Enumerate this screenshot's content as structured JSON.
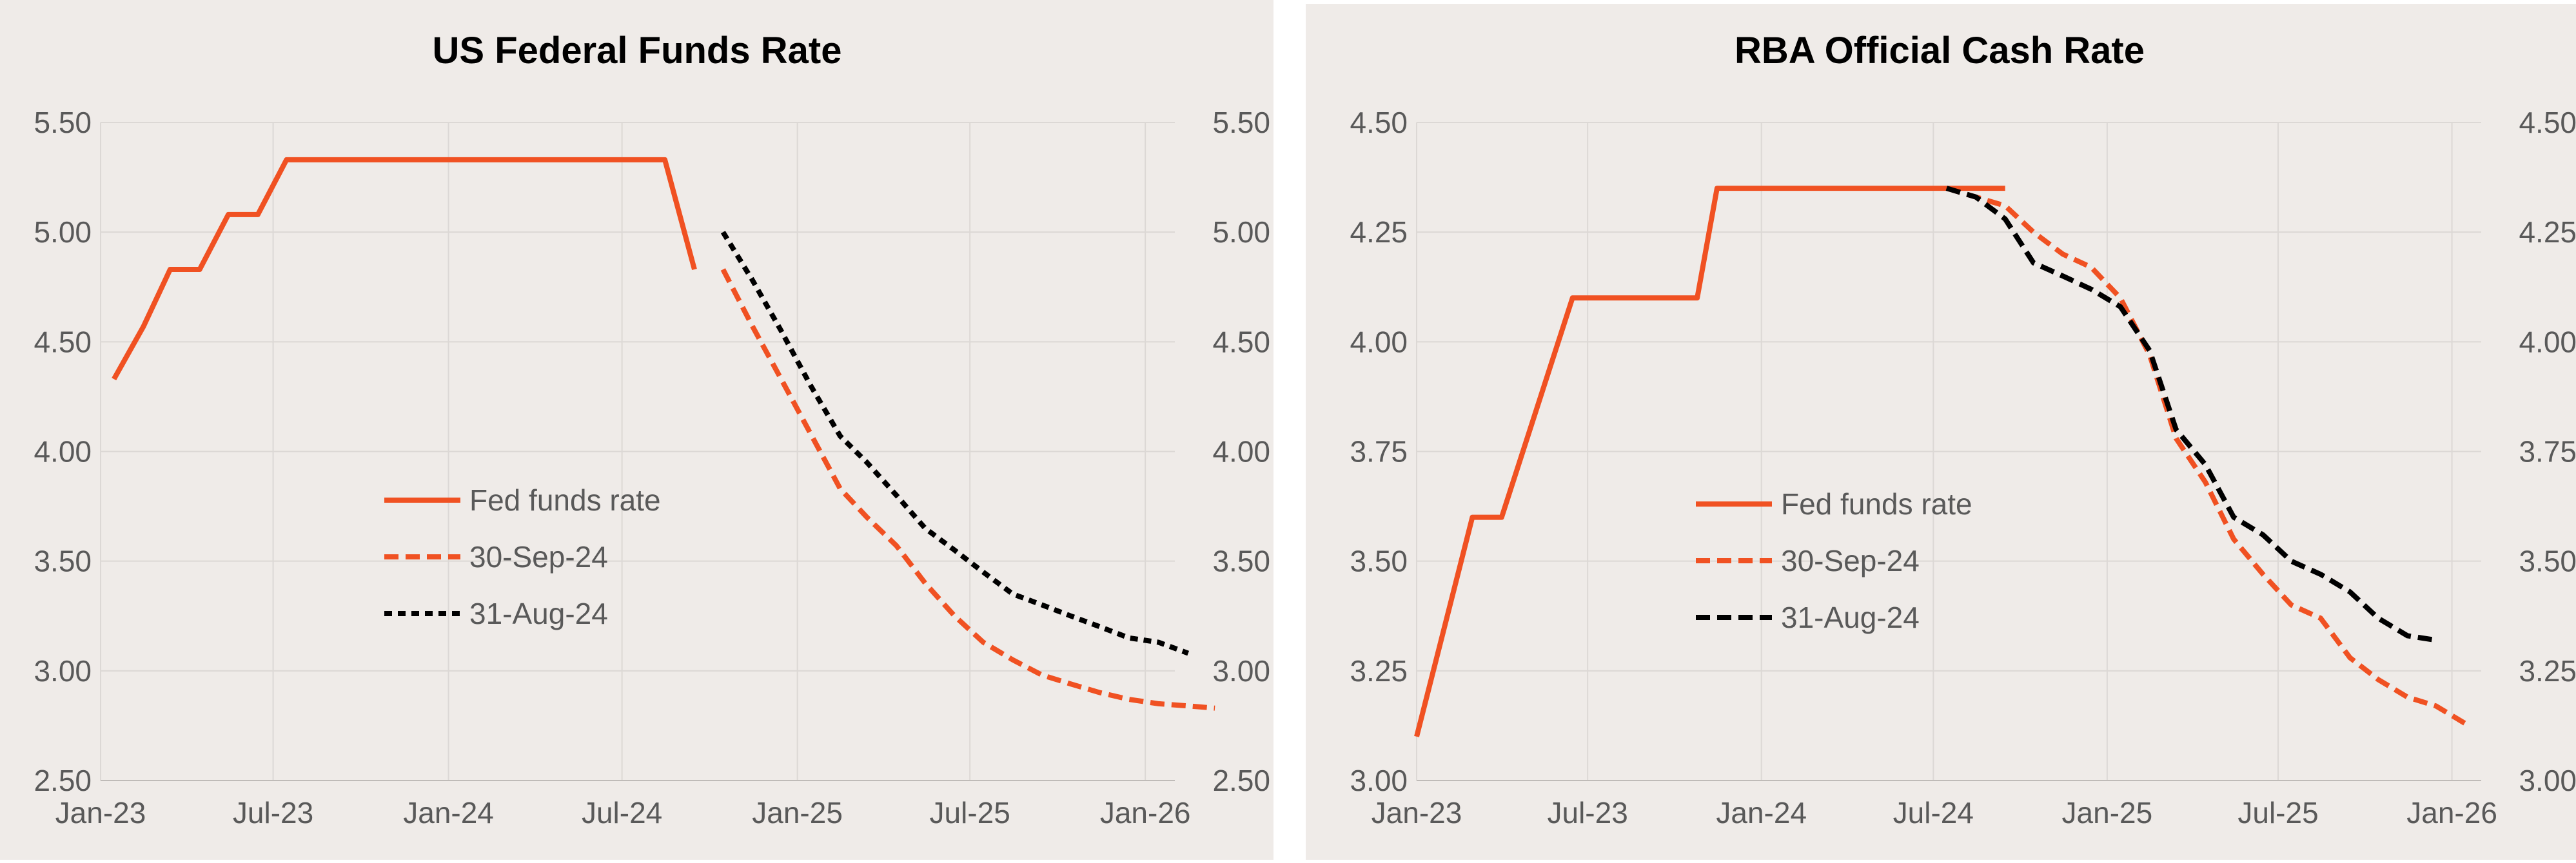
{
  "colors": {
    "background": "#efebe8",
    "gridline": "#dcd8d5",
    "axis_text": "#595959",
    "title_text": "#000000",
    "actual_series": "#f05122",
    "sep_series": "#f05122",
    "aug_series": "#000000"
  },
  "chart_data": [
    {
      "type": "line",
      "title": "US Federal Funds Rate",
      "xlabel": "",
      "ylabel": "",
      "x_ticks": [
        "Jan-23",
        "Jul-23",
        "Jan-24",
        "Jul-24",
        "Jan-25",
        "Jul-25",
        "Jan-26"
      ],
      "y_ticks": [
        "2.50",
        "3.00",
        "3.50",
        "4.00",
        "4.50",
        "5.00",
        "5.50"
      ],
      "ylim": [
        2.5,
        5.5
      ],
      "xlim": [
        "2023-01-01",
        "2026-02-01"
      ],
      "grid": true,
      "legend_position": "center-left",
      "series": [
        {
          "name": "Fed funds rate",
          "style": "solid",
          "points": [
            [
              "2023-01-15",
              4.33
            ],
            [
              "2023-02-15",
              4.57
            ],
            [
              "2023-03-15",
              4.83
            ],
            [
              "2023-04-15",
              4.83
            ],
            [
              "2023-05-15",
              5.08
            ],
            [
              "2023-06-15",
              5.08
            ],
            [
              "2023-07-15",
              5.33
            ],
            [
              "2023-08-15",
              5.33
            ],
            [
              "2023-09-15",
              5.33
            ],
            [
              "2023-10-15",
              5.33
            ],
            [
              "2023-11-15",
              5.33
            ],
            [
              "2023-12-15",
              5.33
            ],
            [
              "2024-01-15",
              5.33
            ],
            [
              "2024-02-15",
              5.33
            ],
            [
              "2024-03-15",
              5.33
            ],
            [
              "2024-04-15",
              5.33
            ],
            [
              "2024-05-15",
              5.33
            ],
            [
              "2024-06-15",
              5.33
            ],
            [
              "2024-07-15",
              5.33
            ],
            [
              "2024-08-15",
              5.33
            ],
            [
              "2024-09-15",
              4.83
            ]
          ]
        },
        {
          "name": "30-Sep-24",
          "style": "dashed",
          "points": [
            [
              "2024-10-15",
              4.83
            ],
            [
              "2024-11-15",
              4.57
            ],
            [
              "2024-12-15",
              4.33
            ],
            [
              "2025-01-15",
              4.08
            ],
            [
              "2025-02-15",
              3.83
            ],
            [
              "2025-03-15",
              3.7
            ],
            [
              "2025-04-15",
              3.57
            ],
            [
              "2025-05-15",
              3.4
            ],
            [
              "2025-06-15",
              3.25
            ],
            [
              "2025-07-15",
              3.13
            ],
            [
              "2025-08-15",
              3.05
            ],
            [
              "2025-09-15",
              2.98
            ],
            [
              "2025-10-15",
              2.94
            ],
            [
              "2025-11-15",
              2.9
            ],
            [
              "2025-12-15",
              2.87
            ],
            [
              "2026-01-15",
              2.85
            ],
            [
              "2026-02-15",
              2.84
            ],
            [
              "2026-03-15",
              2.83
            ]
          ]
        },
        {
          "name": "31-Aug-24",
          "style": "dotted",
          "points": [
            [
              "2024-10-15",
              5.0
            ],
            [
              "2024-11-15",
              4.78
            ],
            [
              "2024-12-15",
              4.55
            ],
            [
              "2025-01-15",
              4.3
            ],
            [
              "2025-02-15",
              4.07
            ],
            [
              "2025-03-15",
              3.95
            ],
            [
              "2025-04-15",
              3.8
            ],
            [
              "2025-05-15",
              3.65
            ],
            [
              "2025-06-15",
              3.55
            ],
            [
              "2025-07-15",
              3.45
            ],
            [
              "2025-08-15",
              3.35
            ],
            [
              "2025-09-15",
              3.3
            ],
            [
              "2025-10-15",
              3.25
            ],
            [
              "2025-11-15",
              3.2
            ],
            [
              "2025-12-15",
              3.15
            ],
            [
              "2026-01-15",
              3.13
            ],
            [
              "2026-02-15",
              3.08
            ]
          ]
        }
      ]
    },
    {
      "type": "line",
      "title": "RBA Official Cash Rate",
      "xlabel": "",
      "ylabel": "",
      "x_ticks": [
        "Jan-23",
        "Jul-23",
        "Jan-24",
        "Jul-24",
        "Jan-25",
        "Jul-25",
        "Jan-26"
      ],
      "y_ticks": [
        "3.00",
        "3.25",
        "3.50",
        "3.75",
        "4.00",
        "4.25",
        "4.50"
      ],
      "ylim": [
        3.0,
        4.5
      ],
      "xlim": [
        "2023-01-01",
        "2026-02-01"
      ],
      "grid": true,
      "legend_position": "center-left",
      "series": [
        {
          "name": "Fed funds rate",
          "style": "solid",
          "points": [
            [
              "2023-01-01",
              3.1
            ],
            [
              "2023-03-01",
              3.6
            ],
            [
              "2023-04-01",
              3.6
            ],
            [
              "2023-06-15",
              4.1
            ],
            [
              "2023-10-25",
              4.1
            ],
            [
              "2023-11-15",
              4.35
            ],
            [
              "2024-09-15",
              4.35
            ]
          ]
        },
        {
          "name": "30-Sep-24",
          "style": "dashed",
          "points": [
            [
              "2024-07-15",
              4.35
            ],
            [
              "2024-09-15",
              4.31
            ],
            [
              "2024-10-15",
              4.25
            ],
            [
              "2024-11-15",
              4.2
            ],
            [
              "2024-12-15",
              4.17
            ],
            [
              "2025-01-15",
              4.1
            ],
            [
              "2025-02-15",
              3.97
            ],
            [
              "2025-03-15",
              3.78
            ],
            [
              "2025-04-15",
              3.68
            ],
            [
              "2025-05-15",
              3.55
            ],
            [
              "2025-06-15",
              3.47
            ],
            [
              "2025-07-15",
              3.4
            ],
            [
              "2025-08-15",
              3.37
            ],
            [
              "2025-09-15",
              3.28
            ],
            [
              "2025-10-15",
              3.23
            ],
            [
              "2025-11-15",
              3.19
            ],
            [
              "2025-12-15",
              3.17
            ],
            [
              "2026-01-15",
              3.13
            ]
          ]
        },
        {
          "name": "31-Aug-24",
          "style": "dashed",
          "points": [
            [
              "2024-07-15",
              4.35
            ],
            [
              "2024-08-15",
              4.33
            ],
            [
              "2024-09-15",
              4.28
            ],
            [
              "2024-10-15",
              4.18
            ],
            [
              "2024-11-15",
              4.15
            ],
            [
              "2024-12-15",
              4.12
            ],
            [
              "2025-01-15",
              4.08
            ],
            [
              "2025-02-15",
              3.98
            ],
            [
              "2025-03-15",
              3.8
            ],
            [
              "2025-04-15",
              3.72
            ],
            [
              "2025-05-15",
              3.6
            ],
            [
              "2025-06-15",
              3.56
            ],
            [
              "2025-07-15",
              3.5
            ],
            [
              "2025-08-15",
              3.47
            ],
            [
              "2025-09-15",
              3.43
            ],
            [
              "2025-10-15",
              3.37
            ],
            [
              "2025-11-15",
              3.33
            ],
            [
              "2025-12-15",
              3.32
            ]
          ]
        }
      ]
    }
  ]
}
